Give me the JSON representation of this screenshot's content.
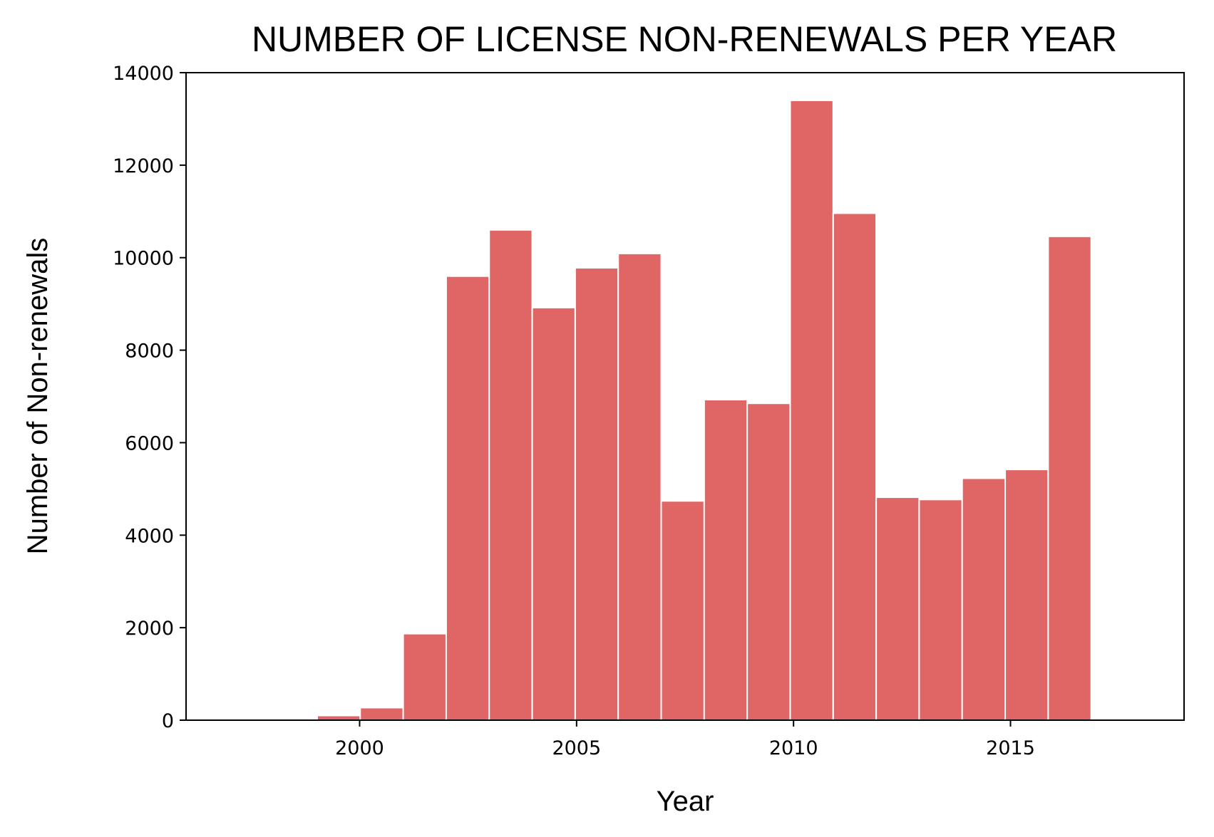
{
  "chart_data": {
    "type": "bar",
    "title": "NUMBER OF LICENSE NON-RENEWALS PER YEAR",
    "xlabel": "Year",
    "ylabel": "Number of Non-renewals",
    "x": [
      1997,
      1998,
      1999,
      2000,
      2001,
      2002,
      2003,
      2004,
      2005,
      2006,
      2007,
      2008,
      2009,
      2010,
      2011,
      2012,
      2013,
      2014,
      2015,
      2016,
      2017,
      2018
    ],
    "values": [
      0,
      0,
      0,
      100,
      270,
      1870,
      9600,
      10600,
      8920,
      9780,
      10090,
      4740,
      6930,
      6850,
      13400,
      10960,
      4820,
      4770,
      5230,
      5420,
      10460,
      0
    ],
    "bar_span": [
      1996.05,
      2017.85
    ],
    "xlim": [
      1996,
      2019
    ],
    "ylim": [
      0,
      14000
    ],
    "xticks": [
      2000,
      2005,
      2010,
      2015
    ],
    "yticks": [
      0,
      2000,
      4000,
      6000,
      8000,
      10000,
      12000,
      14000
    ],
    "bar_color": "#e06666",
    "edge_color": "#ffffff",
    "grid": false,
    "legend": "none"
  }
}
